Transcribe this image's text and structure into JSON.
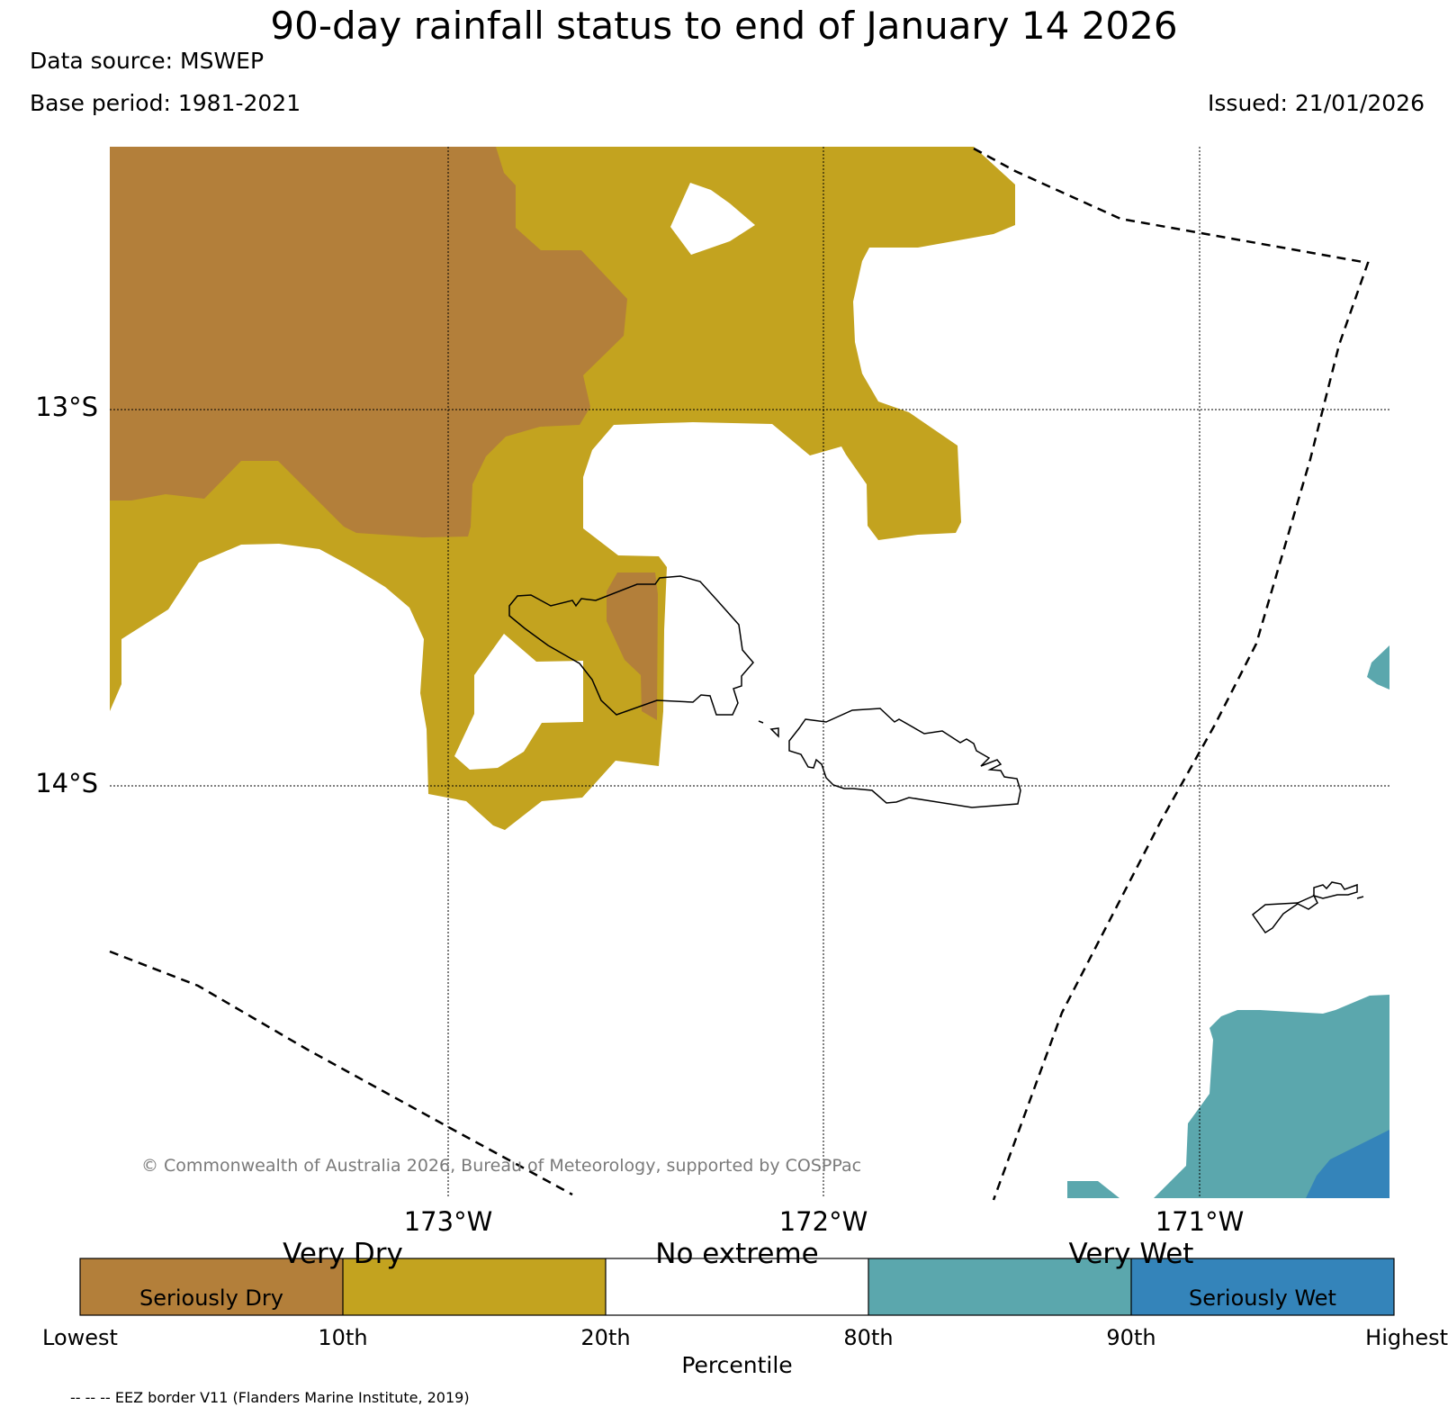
{
  "header": {
    "title": "90-day rainfall status to end of January 14 2026",
    "data_source": "Data source: MSWEP",
    "base_period": "Base period: 1981-2021",
    "issued": "Issued: 21/01/2026"
  },
  "map": {
    "latitude_labels": [
      "13°S",
      "14°S"
    ],
    "longitude_labels": [
      "173°W",
      "172°W",
      "171°W"
    ],
    "credit": "© Commonwealth of Australia 2026, Bureau of Meteorology, supported by COSPPac",
    "icons": [
      "eez-border-line",
      "coastline-outline"
    ]
  },
  "legend": {
    "category_labels": [
      "Very Dry",
      "No extreme",
      "Very Wet"
    ],
    "inner_labels": [
      "Seriously Dry",
      "Seriously Wet"
    ],
    "classes": [
      {
        "name": "Seriously Dry",
        "color": "#b37f3a"
      },
      {
        "name": "Very Dry",
        "color": "#c3a31f"
      },
      {
        "name": "No extreme",
        "color": "#ffffff"
      },
      {
        "name": "Very Wet",
        "color": "#5ba7ad"
      },
      {
        "name": "Seriously Wet",
        "color": "#3484ba"
      }
    ],
    "ticks": [
      "Lowest",
      "10th",
      "20th",
      "80th",
      "90th",
      "Highest"
    ],
    "axis_label": "Percentile",
    "footnote": "-- -- -- EEZ border V11 (Flanders Marine Institute, 2019)"
  }
}
